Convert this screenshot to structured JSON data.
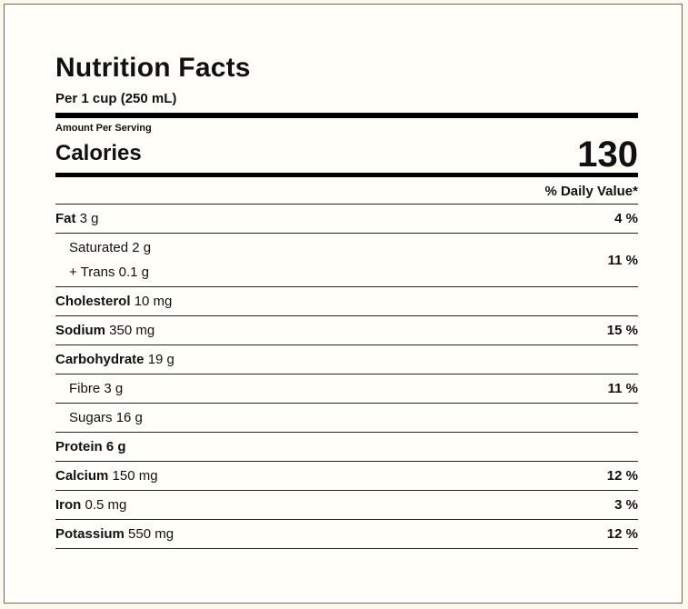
{
  "title": "Nutrition Facts",
  "serving": "Per 1 cup (250 mL)",
  "amount_per_serving": "Amount Per Serving",
  "calories": {
    "label": "Calories",
    "value": "130"
  },
  "daily_value_header": "% Daily Value*",
  "nutrients": {
    "fat": {
      "name": "Fat",
      "amount": "3 g",
      "dv": "4 %"
    },
    "saturated": {
      "name": "Saturated",
      "amount": "2 g"
    },
    "trans": {
      "name": "+ Trans",
      "amount": "0.1 g"
    },
    "sat_trans_dv": "11 %",
    "cholesterol": {
      "name": "Cholesterol",
      "amount": "10 mg"
    },
    "sodium": {
      "name": "Sodium",
      "amount": "350 mg",
      "dv": "15 %"
    },
    "carbohydrate": {
      "name": "Carbohydrate",
      "amount": "19 g"
    },
    "fibre": {
      "name": "Fibre",
      "amount": "3 g",
      "dv": "11 %"
    },
    "sugars": {
      "name": "Sugars",
      "amount": "16 g"
    },
    "protein": {
      "name": "Protein",
      "amount": "6 g"
    },
    "calcium": {
      "name": "Calcium",
      "amount": "150 mg",
      "dv": "12 %"
    },
    "iron": {
      "name": "Iron",
      "amount": "0.5 mg",
      "dv": "3 %"
    },
    "potassium": {
      "name": "Potassium",
      "amount": "550 mg",
      "dv": "12 %"
    }
  }
}
